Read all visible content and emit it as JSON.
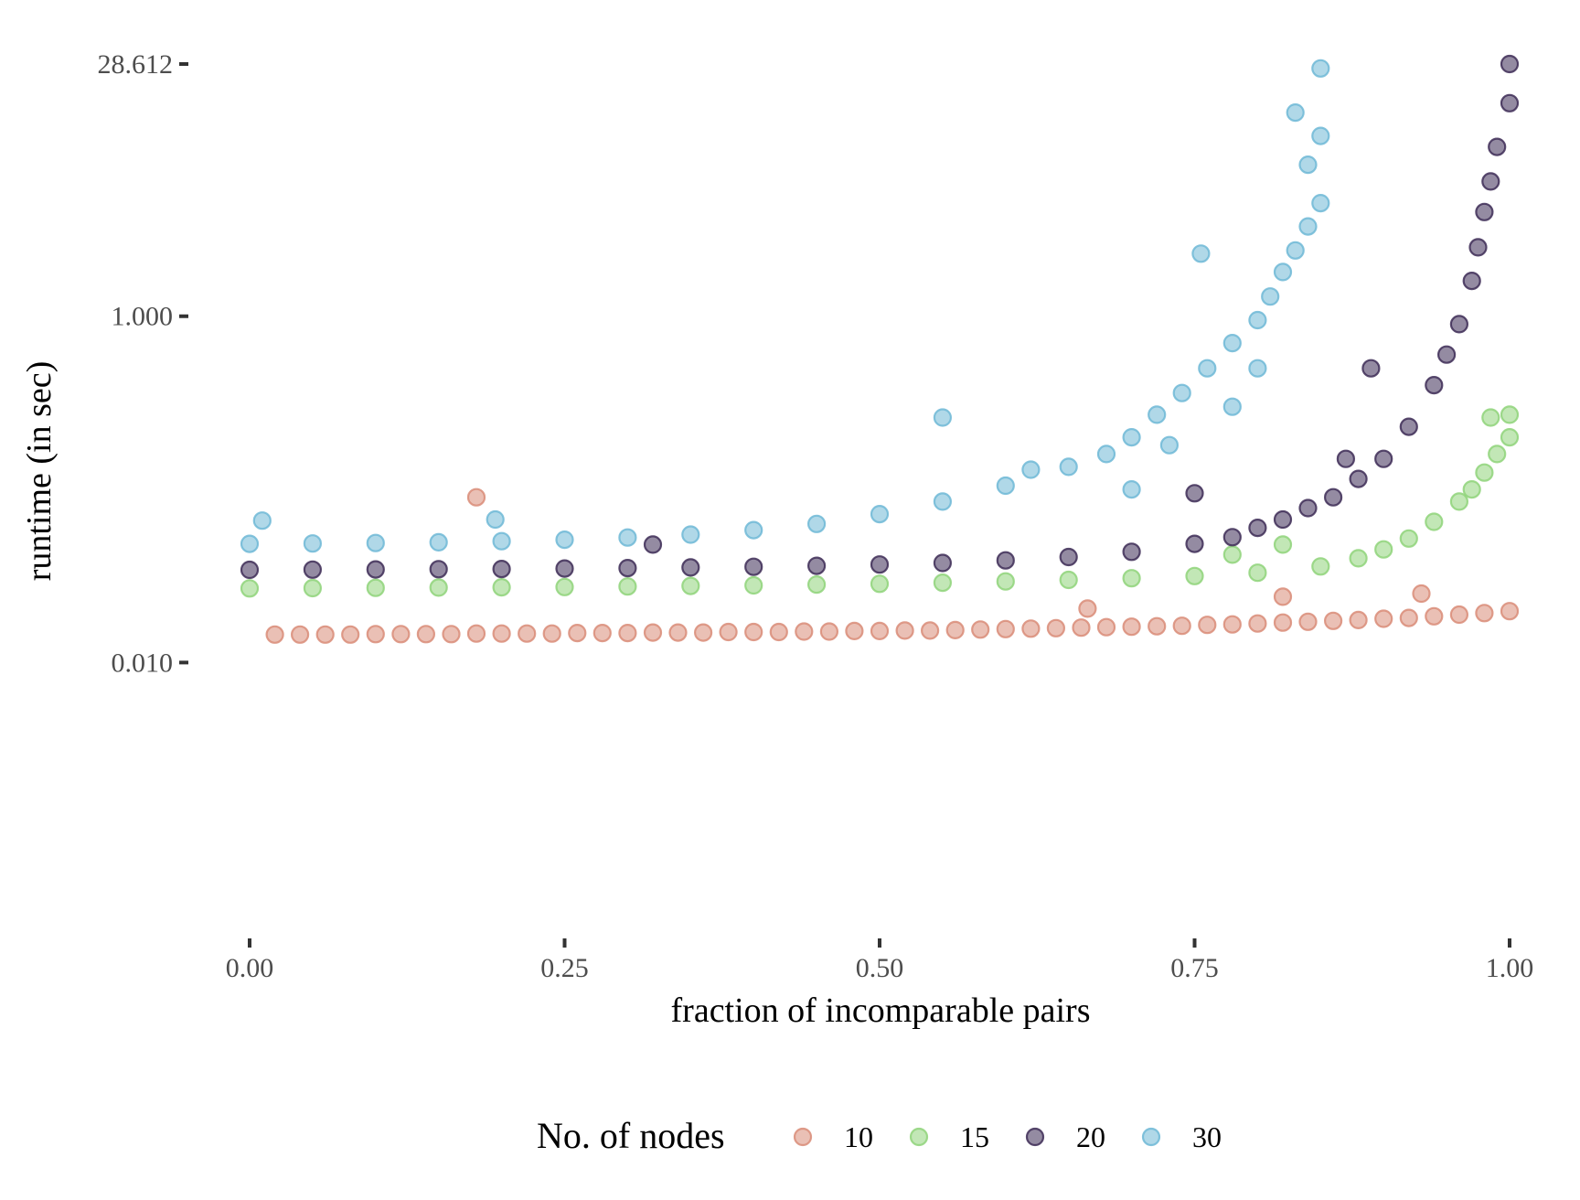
{
  "chart_data": {
    "type": "scatter",
    "xlabel": "fraction of incomparable pairs",
    "ylabel": "runtime (in sec)",
    "x_scale": "linear",
    "y_scale": "log10",
    "xlim": [
      0,
      1
    ],
    "ylim": [
      0.00035,
      28.612
    ],
    "x_ticks": [
      0,
      0.25,
      0.5,
      0.75,
      1
    ],
    "x_tick_labels": [
      "0.00",
      "0.25",
      "0.50",
      "0.75",
      "1.00"
    ],
    "y_ticks": [
      0.01,
      1,
      28.612
    ],
    "y_tick_labels": [
      "0.010",
      "1.000",
      "28.612"
    ],
    "grid": false,
    "legend": {
      "title": "No. of nodes",
      "position": "bottom"
    },
    "series": [
      {
        "name": "10",
        "color": "#d98c78",
        "points": [
          [
            0.02,
            0.0145
          ],
          [
            0.04,
            0.0145
          ],
          [
            0.06,
            0.0145
          ],
          [
            0.08,
            0.0145
          ],
          [
            0.1,
            0.0146
          ],
          [
            0.12,
            0.0146
          ],
          [
            0.14,
            0.0146
          ],
          [
            0.16,
            0.0146
          ],
          [
            0.18,
            0.0147
          ],
          [
            0.2,
            0.0147
          ],
          [
            0.22,
            0.0147
          ],
          [
            0.24,
            0.0147
          ],
          [
            0.26,
            0.0148
          ],
          [
            0.28,
            0.0148
          ],
          [
            0.3,
            0.0148
          ],
          [
            0.32,
            0.0149
          ],
          [
            0.34,
            0.0149
          ],
          [
            0.36,
            0.0149
          ],
          [
            0.38,
            0.015
          ],
          [
            0.4,
            0.015
          ],
          [
            0.42,
            0.015
          ],
          [
            0.44,
            0.0151
          ],
          [
            0.46,
            0.0151
          ],
          [
            0.48,
            0.0152
          ],
          [
            0.5,
            0.0152
          ],
          [
            0.52,
            0.0153
          ],
          [
            0.54,
            0.0153
          ],
          [
            0.56,
            0.0154
          ],
          [
            0.58,
            0.0155
          ],
          [
            0.6,
            0.0156
          ],
          [
            0.62,
            0.0157
          ],
          [
            0.64,
            0.0158
          ],
          [
            0.66,
            0.0159
          ],
          [
            0.68,
            0.016
          ],
          [
            0.7,
            0.0161
          ],
          [
            0.72,
            0.0162
          ],
          [
            0.74,
            0.0163
          ],
          [
            0.76,
            0.0165
          ],
          [
            0.78,
            0.0166
          ],
          [
            0.8,
            0.0168
          ],
          [
            0.82,
            0.017
          ],
          [
            0.84,
            0.0172
          ],
          [
            0.86,
            0.0174
          ],
          [
            0.88,
            0.0176
          ],
          [
            0.9,
            0.0179
          ],
          [
            0.92,
            0.0181
          ],
          [
            0.94,
            0.0185
          ],
          [
            0.96,
            0.0189
          ],
          [
            0.98,
            0.0193
          ],
          [
            1.0,
            0.0198
          ],
          [
            0.18,
            0.09
          ],
          [
            0.665,
            0.0205
          ],
          [
            0.93,
            0.025
          ],
          [
            0.82,
            0.024
          ]
        ]
      },
      {
        "name": "15",
        "color": "#8fd47a",
        "points": [
          [
            0.0,
            0.0268
          ],
          [
            0.05,
            0.0269
          ],
          [
            0.1,
            0.027
          ],
          [
            0.15,
            0.0271
          ],
          [
            0.2,
            0.0272
          ],
          [
            0.25,
            0.0273
          ],
          [
            0.3,
            0.0275
          ],
          [
            0.35,
            0.0277
          ],
          [
            0.4,
            0.0279
          ],
          [
            0.45,
            0.0282
          ],
          [
            0.5,
            0.0285
          ],
          [
            0.55,
            0.0289
          ],
          [
            0.6,
            0.0294
          ],
          [
            0.65,
            0.03
          ],
          [
            0.7,
            0.0307
          ],
          [
            0.75,
            0.0316
          ],
          [
            0.8,
            0.033
          ],
          [
            0.85,
            0.0359
          ],
          [
            0.88,
            0.04
          ],
          [
            0.9,
            0.045
          ],
          [
            0.92,
            0.052
          ],
          [
            0.94,
            0.065
          ],
          [
            0.96,
            0.085
          ],
          [
            0.97,
            0.1
          ],
          [
            0.98,
            0.125
          ],
          [
            0.99,
            0.16
          ],
          [
            1.0,
            0.2
          ],
          [
            0.985,
            0.26
          ],
          [
            1.0,
            0.27
          ],
          [
            0.78,
            0.042
          ],
          [
            0.82,
            0.048
          ]
        ]
      },
      {
        "name": "20",
        "color": "#3d2b56",
        "points": [
          [
            0.0,
            0.0343
          ],
          [
            0.05,
            0.0344
          ],
          [
            0.1,
            0.0345
          ],
          [
            0.15,
            0.0346
          ],
          [
            0.2,
            0.0347
          ],
          [
            0.25,
            0.0349
          ],
          [
            0.3,
            0.0351
          ],
          [
            0.35,
            0.0354
          ],
          [
            0.4,
            0.0357
          ],
          [
            0.45,
            0.0362
          ],
          [
            0.5,
            0.0368
          ],
          [
            0.55,
            0.0376
          ],
          [
            0.6,
            0.0389
          ],
          [
            0.65,
            0.0407
          ],
          [
            0.7,
            0.0436
          ],
          [
            0.75,
            0.0485
          ],
          [
            0.78,
            0.053
          ],
          [
            0.8,
            0.06
          ],
          [
            0.82,
            0.067
          ],
          [
            0.84,
            0.078
          ],
          [
            0.86,
            0.09
          ],
          [
            0.88,
            0.115
          ],
          [
            0.9,
            0.15
          ],
          [
            0.92,
            0.23
          ],
          [
            0.94,
            0.4
          ],
          [
            0.95,
            0.6
          ],
          [
            0.96,
            0.9
          ],
          [
            0.97,
            1.6
          ],
          [
            0.975,
            2.5
          ],
          [
            0.98,
            4.0
          ],
          [
            0.985,
            6.0
          ],
          [
            0.99,
            9.5
          ],
          [
            1.0,
            17.0
          ],
          [
            1.0,
            28.6
          ],
          [
            0.32,
            0.048
          ],
          [
            0.75,
            0.095
          ],
          [
            0.89,
            0.5
          ],
          [
            0.87,
            0.15
          ]
        ]
      },
      {
        "name": "30",
        "color": "#6fb8d6",
        "points": [
          [
            0.0,
            0.0485
          ],
          [
            0.05,
            0.0487
          ],
          [
            0.1,
            0.049
          ],
          [
            0.15,
            0.0495
          ],
          [
            0.2,
            0.0502
          ],
          [
            0.25,
            0.0512
          ],
          [
            0.3,
            0.0527
          ],
          [
            0.35,
            0.0548
          ],
          [
            0.4,
            0.0582
          ],
          [
            0.45,
            0.0632
          ],
          [
            0.5,
            0.072
          ],
          [
            0.55,
            0.085
          ],
          [
            0.6,
            0.105
          ],
          [
            0.65,
            0.135
          ],
          [
            0.68,
            0.16
          ],
          [
            0.7,
            0.2
          ],
          [
            0.72,
            0.27
          ],
          [
            0.74,
            0.36
          ],
          [
            0.76,
            0.5
          ],
          [
            0.78,
            0.7
          ],
          [
            0.8,
            0.95
          ],
          [
            0.81,
            1.3
          ],
          [
            0.82,
            1.8
          ],
          [
            0.83,
            2.4
          ],
          [
            0.84,
            3.3
          ],
          [
            0.85,
            4.5
          ],
          [
            0.84,
            7.5
          ],
          [
            0.85,
            11.0
          ],
          [
            0.83,
            15.0
          ],
          [
            0.85,
            27.0
          ],
          [
            0.55,
            0.26
          ],
          [
            0.755,
            2.3
          ],
          [
            0.195,
            0.067
          ],
          [
            0.01,
            0.066
          ],
          [
            0.62,
            0.13
          ],
          [
            0.7,
            0.1
          ],
          [
            0.78,
            0.3
          ],
          [
            0.8,
            0.5
          ],
          [
            0.73,
            0.18
          ]
        ]
      }
    ]
  }
}
